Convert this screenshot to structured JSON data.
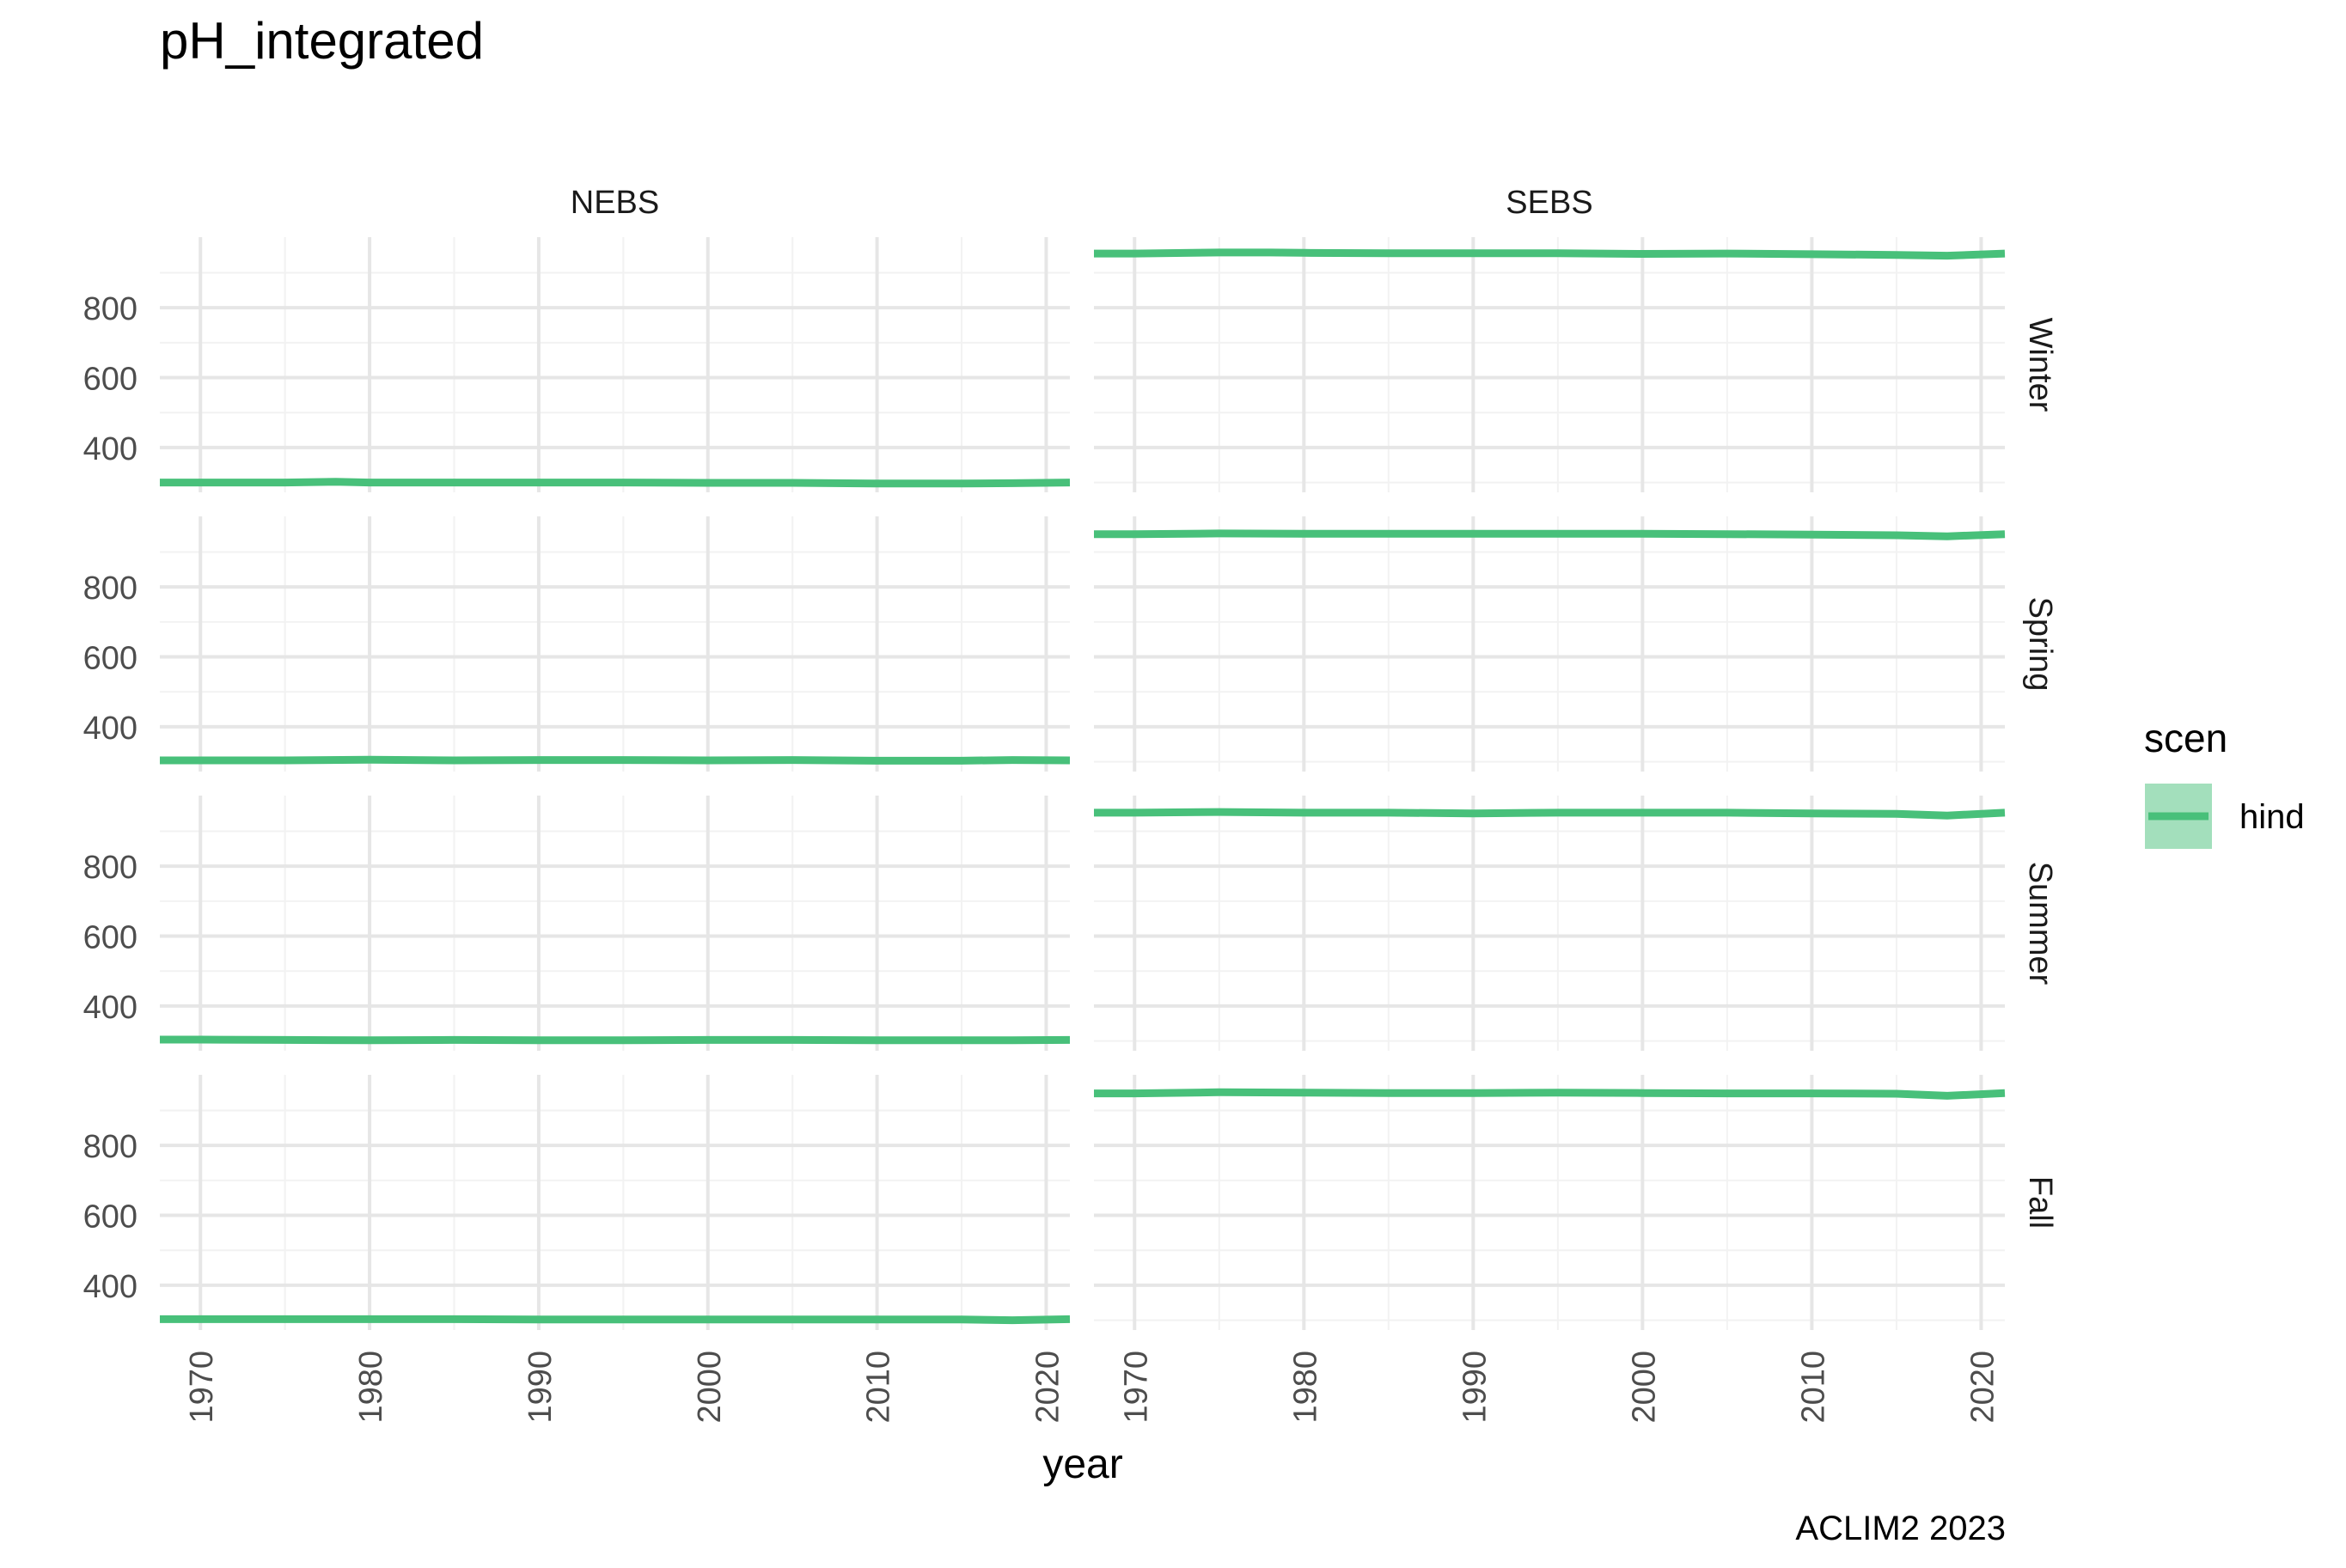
{
  "chart_data": {
    "type": "line",
    "title": "pH_integrated",
    "xlabel": "year",
    "ylabel": "",
    "caption": "ACLIM2 2023",
    "xlim": [
      1967.6,
      2021.4
    ],
    "ylim": [
      272,
      1002
    ],
    "x_ticks": [
      1970,
      1980,
      1990,
      2000,
      2010,
      2020
    ],
    "y_ticks": [
      400,
      600,
      800
    ],
    "grid": true,
    "legend": {
      "title": "scen",
      "position": "right",
      "entries": [
        {
          "name": "hind",
          "color": "#48C07A"
        }
      ]
    },
    "facet_columns": [
      "NEBS",
      "SEBS"
    ],
    "facet_rows": [
      "Winter",
      "Spring",
      "Summer",
      "Fall"
    ],
    "series_color": "#48C07A",
    "series": [
      {
        "name": "hind",
        "region": "NEBS",
        "season": "Winter",
        "x": [
          1967.6,
          1970,
          1975,
          1978,
          1980,
          1985,
          1990,
          1995,
          2000,
          2005,
          2010,
          2015,
          2018,
          2021.4
        ],
        "values": [
          300,
          300,
          300,
          302,
          300,
          300,
          300,
          300,
          299,
          299,
          297,
          297,
          298,
          300
        ]
      },
      {
        "name": "hind",
        "region": "SEBS",
        "season": "Winter",
        "x": [
          1967.6,
          1970,
          1975,
          1978,
          1980,
          1985,
          1990,
          1995,
          2000,
          2005,
          2010,
          2015,
          2018,
          2021.4
        ],
        "values": [
          955,
          955,
          958,
          958,
          957,
          956,
          956,
          956,
          954,
          955,
          953,
          951,
          949,
          955
        ]
      },
      {
        "name": "hind",
        "region": "NEBS",
        "season": "Spring",
        "x": [
          1967.6,
          1970,
          1975,
          1980,
          1985,
          1990,
          1995,
          2000,
          2005,
          2010,
          2015,
          2018,
          2021.4
        ],
        "values": [
          304,
          304,
          304,
          306,
          304,
          305,
          305,
          304,
          305,
          303,
          303,
          305,
          304
        ]
      },
      {
        "name": "hind",
        "region": "SEBS",
        "season": "Spring",
        "x": [
          1967.6,
          1970,
          1975,
          1980,
          1985,
          1990,
          1995,
          2000,
          2005,
          2010,
          2015,
          2018,
          2021.4
        ],
        "values": [
          951,
          951,
          953,
          952,
          952,
          952,
          952,
          952,
          951,
          950,
          948,
          945,
          951
        ]
      },
      {
        "name": "hind",
        "region": "NEBS",
        "season": "Summer",
        "x": [
          1967.6,
          1970,
          1975,
          1980,
          1985,
          1990,
          1995,
          2000,
          2005,
          2010,
          2015,
          2018,
          2021.4
        ],
        "values": [
          304,
          304,
          303,
          302,
          303,
          302,
          302,
          303,
          303,
          302,
          302,
          302,
          303
        ]
      },
      {
        "name": "hind",
        "region": "SEBS",
        "season": "Summer",
        "x": [
          1967.6,
          1970,
          1975,
          1980,
          1985,
          1990,
          1995,
          2000,
          2005,
          2010,
          2015,
          2018,
          2021.4
        ],
        "values": [
          953,
          953,
          955,
          953,
          953,
          951,
          953,
          953,
          953,
          951,
          950,
          945,
          953
        ]
      },
      {
        "name": "hind",
        "region": "NEBS",
        "season": "Fall",
        "x": [
          1967.6,
          1970,
          1975,
          1980,
          1985,
          1990,
          1995,
          2000,
          2005,
          2010,
          2015,
          2018,
          2021.4
        ],
        "values": [
          303,
          303,
          303,
          303,
          303,
          302,
          302,
          302,
          302,
          302,
          302,
          300,
          303
        ]
      },
      {
        "name": "hind",
        "region": "SEBS",
        "season": "Fall",
        "x": [
          1967.6,
          1970,
          1975,
          1980,
          1985,
          1990,
          1995,
          2000,
          2005,
          2010,
          2015,
          2018,
          2021.4
        ],
        "values": [
          949,
          949,
          952,
          951,
          950,
          950,
          951,
          950,
          949,
          949,
          948,
          942,
          950
        ]
      }
    ]
  }
}
